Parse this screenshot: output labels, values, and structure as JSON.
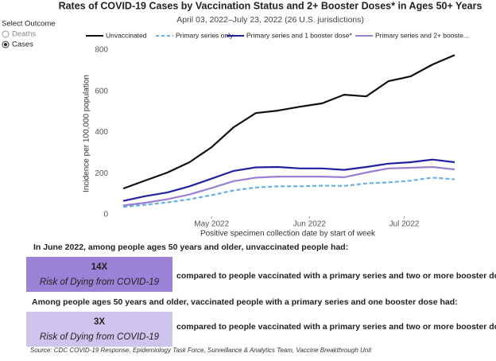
{
  "filter": {
    "label": "Select Outcome",
    "options": [
      "Deaths",
      "Cases"
    ],
    "selected": "Cases"
  },
  "chart_data": {
    "type": "line",
    "title": "Rates of COVID-19 Cases by Vaccination Status and 2+ Booster Doses* in Ages 50+ Years",
    "subtitle": "April 03, 2022–July 23, 2022 (26 U.S. jurisdictions)",
    "x_label": "Positive specimen collection date by start of week",
    "y_label": "Incidence per 100,000 population",
    "x": [
      "2022-04-03",
      "2022-04-10",
      "2022-04-17",
      "2022-04-24",
      "2022-05-01",
      "2022-05-08",
      "2022-05-15",
      "2022-05-22",
      "2022-05-29",
      "2022-06-05",
      "2022-06-12",
      "2022-06-19",
      "2022-06-26",
      "2022-07-03",
      "2022-07-10",
      "2022-07-17"
    ],
    "xticks": [
      {
        "value": "2022-05-01",
        "label": "May 2022"
      },
      {
        "value": "2022-06-01",
        "label": "Jun 2022"
      },
      {
        "value": "2022-07-01",
        "label": "Jul 2022"
      }
    ],
    "ylim": [
      0,
      800
    ],
    "yticks": [
      0,
      200,
      400,
      600,
      800
    ],
    "grid": false,
    "legend": "top",
    "series": [
      {
        "name": "Unvaccinated",
        "color": "#111111",
        "dash": false,
        "values": [
          127,
          166,
          205,
          255,
          328,
          425,
          494,
          506,
          525,
          541,
          583,
          575,
          649,
          672,
          730,
          776
        ]
      },
      {
        "name": "Primary series only",
        "color": "#6aaee8",
        "dash": true,
        "values": [
          38,
          48,
          60,
          75,
          95,
          118,
          132,
          138,
          138,
          141,
          140,
          152,
          157,
          165,
          180,
          172
        ]
      },
      {
        "name": "Primary series and 1 booster dose*",
        "color": "#1f22a0",
        "dash": false,
        "values": [
          67,
          90,
          108,
          138,
          175,
          213,
          230,
          232,
          225,
          225,
          218,
          232,
          248,
          255,
          268,
          255
        ]
      },
      {
        "name": "Primary series and 2+ booste...",
        "color": "#9a7fd6",
        "dash": false,
        "values": [
          45,
          58,
          75,
          98,
          130,
          163,
          180,
          185,
          185,
          185,
          182,
          205,
          225,
          228,
          232,
          220
        ]
      }
    ]
  },
  "summary": [
    {
      "heading": "In June 2022, among people ages 50 years and older, unvaccinated people had:",
      "ratio": "14X",
      "risk": "Risk of Dying from COVID-19",
      "comparison": "compared to people vaccinated with a primary series and two or more booster doses.*"
    },
    {
      "heading": "Among people ages 50 years and older, vaccinated people with a primary series and one booster dose had:",
      "ratio": "3X",
      "risk": "Risk of Dying from COVID-19",
      "comparison": "compared to people vaccinated with a primary series and two or more booster doses.*"
    }
  ],
  "source": "Source: CDC COVID-19 Response, Epidemiology Task Force, Surveillance & Analytics Team, Vaccine Breakthrough Unit"
}
